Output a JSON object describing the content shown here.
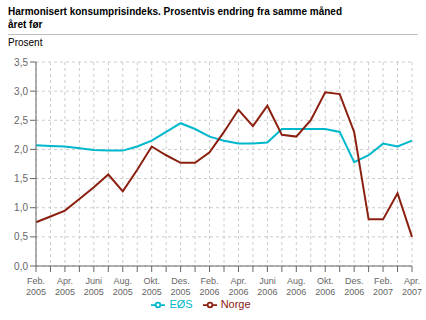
{
  "chart_data": {
    "type": "line",
    "title": "Harmonisert konsumprisindeks. Prosentvis endring fra samme måned\nåret før",
    "y_label": "Prosent",
    "categories": [
      "Feb.\n2005",
      null,
      "Apr.\n2005",
      null,
      "Juni\n2005",
      null,
      "Aug.\n2005",
      null,
      "Okt.\n2005",
      null,
      "Des.\n2005",
      null,
      "Feb.\n2006",
      null,
      "Apr.\n2006",
      null,
      "Juni\n2006",
      null,
      "Aug.\n2006",
      null,
      "Okt.\n2006",
      null,
      "Des.\n2006",
      null,
      "Feb.\n2007",
      null,
      "Apr.\n2007"
    ],
    "series": [
      {
        "name": "EØS",
        "color": "#00b8cc",
        "values": [
          2.07,
          2.06,
          2.05,
          2.02,
          1.99,
          1.98,
          1.98,
          2.05,
          2.15,
          2.3,
          2.45,
          2.35,
          2.22,
          2.15,
          2.1,
          2.1,
          2.12,
          2.35,
          2.35,
          2.35,
          2.35,
          2.3,
          1.78,
          1.9,
          2.1,
          2.05,
          2.15
        ]
      },
      {
        "name": "Norge",
        "color": "#8b2010",
        "values": [
          0.75,
          0.85,
          0.95,
          1.15,
          1.35,
          1.57,
          1.28,
          1.65,
          2.05,
          1.9,
          1.77,
          1.77,
          1.95,
          2.3,
          2.68,
          2.4,
          2.75,
          2.25,
          2.22,
          2.5,
          2.98,
          2.95,
          2.3,
          0.8,
          0.8,
          1.25,
          0.5
        ]
      }
    ],
    "ylim": [
      0,
      3.5
    ],
    "yticks": [
      {
        "value": 0,
        "label": "0,0"
      },
      {
        "value": 0.5,
        "label": "0,5"
      },
      {
        "value": 1.0,
        "label": "1,0"
      },
      {
        "value": 1.5,
        "label": "1,5"
      },
      {
        "value": 2.0,
        "label": "2,0"
      },
      {
        "value": 2.5,
        "label": "2,5"
      },
      {
        "value": 3.0,
        "label": "3,0"
      },
      {
        "value": 3.5,
        "label": "3,5"
      }
    ],
    "grid": true,
    "legend": "bottom"
  }
}
